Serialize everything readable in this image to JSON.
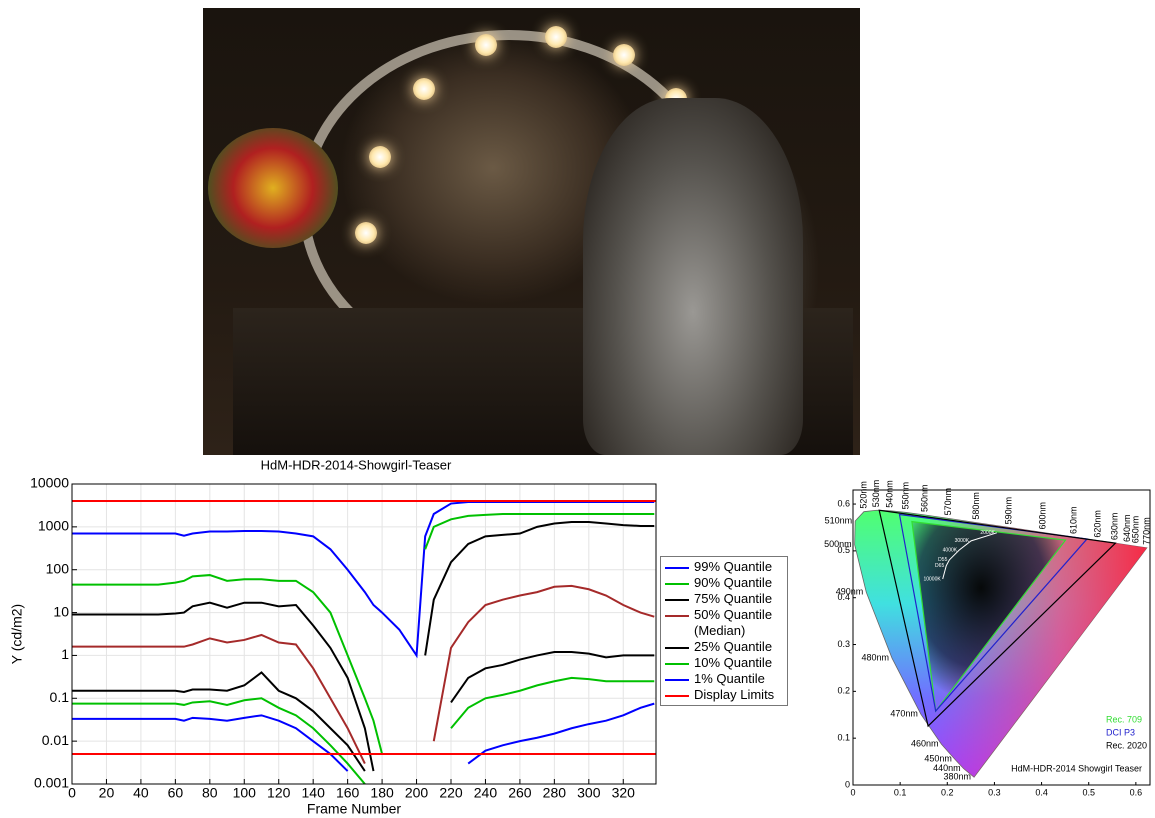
{
  "chart_data": [
    {
      "type": "line",
      "title": "HdM-HDR-2014-Showgirl-Teaser",
      "xlabel": "Frame Number",
      "ylabel": "Y (cd/m2)",
      "x": [
        0,
        10,
        20,
        30,
        40,
        50,
        60,
        65,
        70,
        80,
        90,
        100,
        110,
        120,
        130,
        140,
        150,
        160,
        170,
        175,
        180,
        190,
        200,
        205,
        210,
        220,
        230,
        240,
        250,
        260,
        270,
        280,
        290,
        300,
        310,
        320,
        330,
        338
      ],
      "series": [
        {
          "name": "99% Quantile",
          "color": "#0000ff",
          "values": [
            700,
            700,
            700,
            700,
            700,
            700,
            700,
            620,
            700,
            780,
            780,
            800,
            800,
            780,
            700,
            600,
            300,
            100,
            30,
            15,
            10,
            4,
            1,
            600,
            2000,
            3500,
            3800,
            3800,
            3800,
            3800,
            3800,
            3800,
            3800,
            3800,
            3800,
            3800,
            3800,
            3800
          ]
        },
        {
          "name": "90% Quantile",
          "color": "#00c000",
          "values": [
            45,
            45,
            45,
            45,
            45,
            45,
            50,
            55,
            70,
            75,
            55,
            60,
            60,
            55,
            55,
            30,
            10,
            1,
            0.1,
            0.03,
            0.005,
            null,
            null,
            300,
            1000,
            1500,
            1800,
            1900,
            2000,
            2000,
            2000,
            2000,
            2000,
            2000,
            2000,
            2000,
            2000,
            2000
          ]
        },
        {
          "name": "75% Quantile",
          "color": "#000000",
          "values": [
            9,
            9,
            9,
            9,
            9,
            9,
            9.5,
            10,
            14,
            17,
            13,
            17,
            17,
            14,
            15,
            5,
            1.5,
            0.3,
            0.02,
            0.002,
            null,
            null,
            null,
            1,
            20,
            150,
            400,
            600,
            650,
            700,
            1000,
            1200,
            1300,
            1300,
            1200,
            1100,
            1050,
            1050
          ]
        },
        {
          "name": "50% Quantile (Median)",
          "color": "#a52a2a",
          "values": [
            1.6,
            1.6,
            1.6,
            1.6,
            1.6,
            1.6,
            1.6,
            1.6,
            1.8,
            2.5,
            2,
            2.3,
            3,
            2,
            1.8,
            0.5,
            0.1,
            0.02,
            0.003,
            null,
            null,
            null,
            null,
            null,
            0.01,
            1.5,
            6,
            15,
            20,
            25,
            30,
            40,
            42,
            35,
            25,
            15,
            10,
            8
          ]
        },
        {
          "name": "25% Quantile",
          "color": "#000000",
          "values": [
            0.15,
            0.15,
            0.15,
            0.15,
            0.15,
            0.15,
            0.15,
            0.14,
            0.16,
            0.16,
            0.15,
            0.2,
            0.4,
            0.15,
            0.1,
            0.05,
            0.02,
            0.008,
            0.002,
            null,
            null,
            null,
            null,
            null,
            null,
            0.08,
            0.3,
            0.5,
            0.6,
            0.8,
            1,
            1.2,
            1.2,
            1.1,
            0.9,
            1,
            1,
            1
          ]
        },
        {
          "name": "10% Quantile",
          "color": "#00c000",
          "values": [
            0.075,
            0.075,
            0.075,
            0.075,
            0.075,
            0.075,
            0.075,
            0.07,
            0.08,
            0.085,
            0.07,
            0.09,
            0.1,
            0.06,
            0.04,
            0.02,
            0.008,
            0.003,
            0.001,
            null,
            null,
            null,
            null,
            null,
            null,
            0.02,
            0.06,
            0.1,
            0.12,
            0.15,
            0.2,
            0.25,
            0.3,
            0.28,
            0.25,
            0.25,
            0.25,
            0.25
          ]
        },
        {
          "name": "1% Quantile",
          "color": "#0000ff",
          "values": [
            0.033,
            0.033,
            0.033,
            0.033,
            0.033,
            0.033,
            0.033,
            0.03,
            0.035,
            0.033,
            0.03,
            0.035,
            0.04,
            0.03,
            0.02,
            0.01,
            0.005,
            0.002,
            null,
            null,
            null,
            null,
            null,
            null,
            null,
            null,
            0.003,
            0.006,
            0.008,
            0.01,
            0.012,
            0.015,
            0.02,
            0.025,
            0.03,
            0.04,
            0.06,
            0.075
          ]
        }
      ],
      "display_limits": {
        "name": "Display Limits",
        "color": "#ff0000",
        "values": [
          4000,
          0.005
        ]
      },
      "xlim": [
        0,
        339
      ],
      "xticks": [
        0,
        20,
        40,
        60,
        80,
        100,
        120,
        140,
        160,
        180,
        200,
        220,
        240,
        260,
        280,
        300,
        320
      ],
      "ylim": [
        0.001,
        10000
      ],
      "yticks": [
        0.001,
        0.01,
        0.1,
        1,
        10,
        100,
        1000,
        10000
      ],
      "log_y": true,
      "grid": true,
      "legend": "right"
    },
    {
      "type": "chromaticity",
      "title": "HdM-HDR-2014 Showgirl Teaser",
      "locus": {
        "labels": [
          "380nm",
          "440nm",
          "450nm",
          "460nm",
          "470nm",
          "480nm",
          "490nm",
          "500nm",
          "510nm",
          "520nm",
          "530nm",
          "540nm",
          "550nm",
          "560nm",
          "570nm",
          "580nm",
          "590nm",
          "600nm",
          "610nm",
          "620nm",
          "630nm",
          "640nm",
          "650nm",
          "770nm"
        ],
        "x": [
          0.2568,
          0.2347,
          0.2161,
          0.1877,
          0.1441,
          0.0828,
          0.0282,
          0.0035,
          0.0046,
          0.0231,
          0.0501,
          0.0792,
          0.1127,
          0.1531,
          0.2026,
          0.2623,
          0.3315,
          0.4035,
          0.4692,
          0.5203,
          0.5565,
          0.583,
          0.6005,
          0.6234
        ],
        "y": [
          0.0166,
          0.035,
          0.0549,
          0.0871,
          0.151,
          0.2708,
          0.4117,
          0.5131,
          0.5638,
          0.5837,
          0.5868,
          0.5856,
          0.5821,
          0.5766,
          0.5694,
          0.5604,
          0.5501,
          0.5393,
          0.5296,
          0.5219,
          0.5165,
          0.5125,
          0.5099,
          0.5065
        ]
      },
      "white_points": {
        "labels": [
          "2000K",
          "3000K",
          "4000K",
          "D55",
          "D65",
          "10000K"
        ],
        "x": [
          0.3051,
          0.2505,
          0.2251,
          0.2044,
          0.1978,
          0.1903
        ],
        "y": [
          0.5386,
          0.5214,
          0.5016,
          0.4807,
          0.4683,
          0.44
        ]
      },
      "gamuts": [
        {
          "name": "Rec. 709",
          "color": "#33dd33",
          "x": [
            0.4507,
            0.125,
            0.1754
          ],
          "y": [
            0.5229,
            0.5625,
            0.1579
          ]
        },
        {
          "name": "DCI P3",
          "color": "#2222cc",
          "x": [
            0.4964,
            0.0986,
            0.1754
          ],
          "y": [
            0.5255,
            0.5777,
            0.1579
          ]
        },
        {
          "name": "Rec. 2020",
          "color": "#000000",
          "x": [
            0.5566,
            0.0556,
            0.1593
          ],
          "y": [
            0.5165,
            0.5868,
            0.1258
          ]
        }
      ],
      "xlim": [
        0,
        0.63
      ],
      "xticks": [
        0,
        0.1,
        0.2,
        0.3,
        0.4,
        0.5,
        0.6
      ],
      "ylim": [
        0,
        0.63
      ],
      "yticks": [
        0,
        0.1,
        0.2,
        0.3,
        0.4,
        0.5,
        0.6
      ],
      "legend": "lower right"
    }
  ]
}
